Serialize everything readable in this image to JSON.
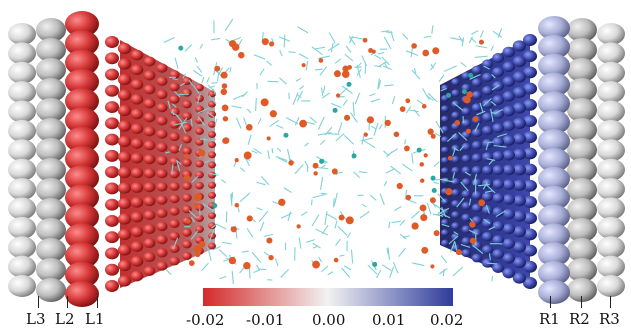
{
  "figure": {
    "colorbar": {
      "min": -0.02,
      "max": 0.02,
      "colors": {
        "negative": "#d42a2a",
        "neutral": "#f2f2f2",
        "positive": "#2f3c9c"
      },
      "tick_labels": [
        "-0.02",
        "-0.01",
        "0.00",
        "0.01",
        "0.02"
      ]
    },
    "left_layer_labels": [
      "L3",
      "L2",
      "L1"
    ],
    "right_layer_labels": [
      "R1",
      "R2",
      "R3"
    ],
    "colors": {
      "layer_outer": "#e4e4e4",
      "layer_mid": "#c9c9c9",
      "left_electrode": "#cf3434",
      "right_electrode": "#3d4aa6",
      "water_bond": "#7fd2d6",
      "oxygen": "#e05a26",
      "ion": "#2aa7a0"
    }
  }
}
